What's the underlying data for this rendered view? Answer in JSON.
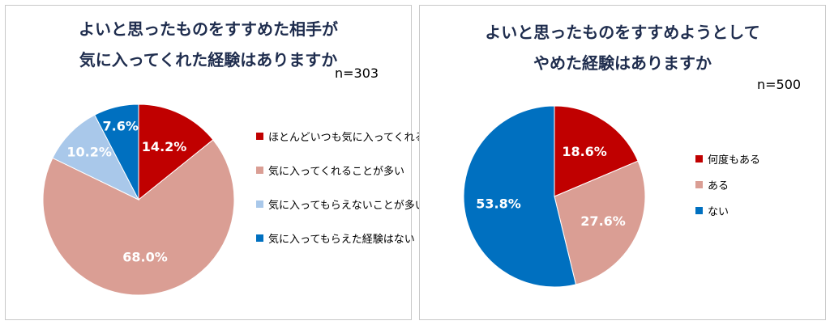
{
  "chart_data": [
    {
      "type": "pie",
      "title": [
        "よいと思ったものをすすめた相手が",
        "気に入ってくれた経験はありますか"
      ],
      "sample": "n=303",
      "slices": [
        {
          "label": "ほとんどいつも気に入ってくれる",
          "value": 14.2,
          "display": "14.2%",
          "color": "#c00000"
        },
        {
          "label": "気に入ってくれることが多い",
          "value": 68.0,
          "display": "68.0%",
          "color": "#da9e94"
        },
        {
          "label": "気に入ってもらえないことが多い",
          "value": 10.2,
          "display": "10.2%",
          "color": "#a9c8ea"
        },
        {
          "label": "気に入ってもらえた経験はない",
          "value": 7.6,
          "display": "7.6%",
          "color": "#0070c0"
        }
      ],
      "legend_position": "right",
      "start_angle_deg": 0,
      "direction": "clockwise"
    },
    {
      "type": "pie",
      "title": [
        "よいと思ったものをすすめようとして",
        "やめた経験はありますか"
      ],
      "sample": "n=500",
      "slices": [
        {
          "label": "何度もある",
          "value": 18.6,
          "display": "18.6%",
          "color": "#c00000"
        },
        {
          "label": "ある",
          "value": 27.6,
          "display": "27.6%",
          "color": "#da9e94"
        },
        {
          "label": "ない",
          "value": 53.8,
          "display": "53.8%",
          "color": "#0070c0"
        }
      ],
      "legend_position": "right",
      "start_angle_deg": 0,
      "direction": "clockwise"
    }
  ]
}
